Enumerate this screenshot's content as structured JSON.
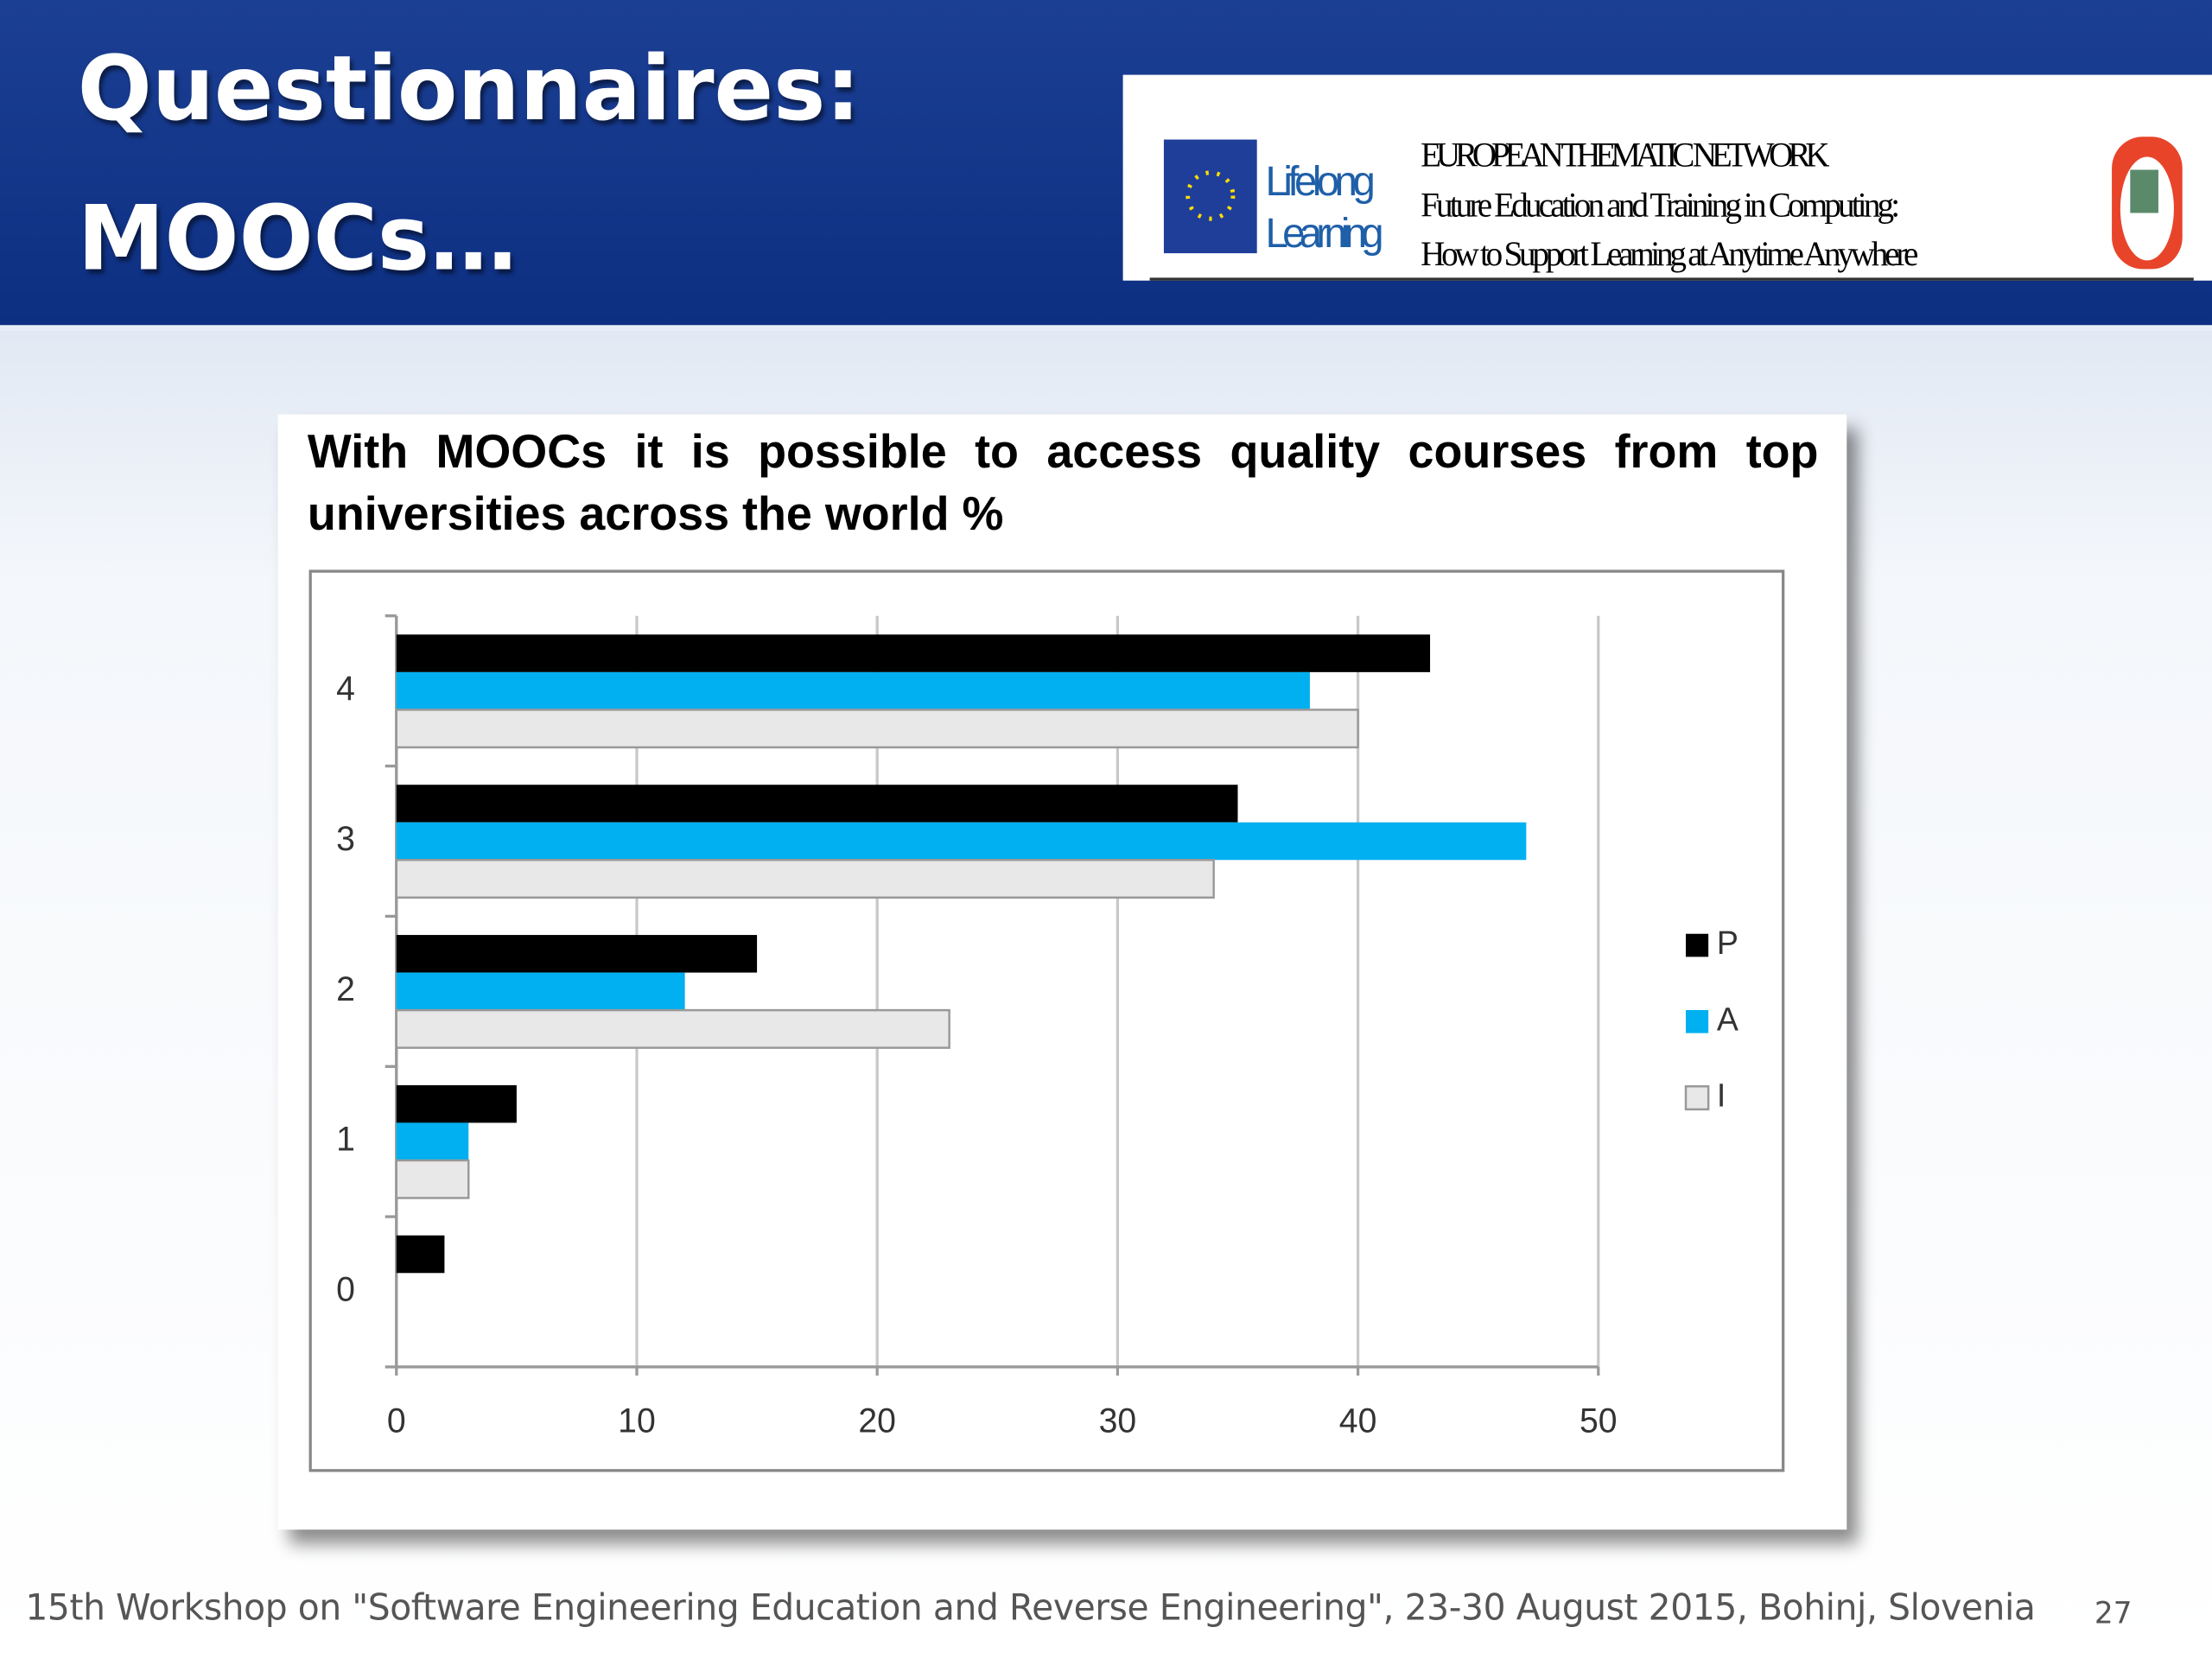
{
  "slide": {
    "title": "Questionnaires: MOOCs…",
    "logo": {
      "program_line1": "Lifelong",
      "program_line2": "Learning",
      "network": "EUROPEAN THEMATIC NETWORK",
      "project_line1": "Future Education and Training in Computing:",
      "project_line2": "How to Support Learning at Anytime Anywhere"
    },
    "footer": "15th Workshop on \"Software Engineering Education and Reverse Engineering\", 23-30 August 2015, Bohinj, Slovenia",
    "page_number": "27"
  },
  "chart_data": {
    "type": "hbar",
    "title": "With MOOCs it is possible to access quality courses from top universities across the world %",
    "categories": [
      "0",
      "1",
      "2",
      "3",
      "4"
    ],
    "series": [
      {
        "name": "P",
        "color": "#000000",
        "values": [
          2,
          5,
          15,
          35,
          43
        ]
      },
      {
        "name": "A",
        "color": "#00b0f0",
        "values": [
          0,
          3,
          12,
          47,
          38
        ]
      },
      {
        "name": "I",
        "color": "#e8e8e8",
        "values": [
          0,
          3,
          23,
          34,
          40
        ]
      }
    ],
    "xlim": [
      0,
      50
    ],
    "xticks": [
      0,
      10,
      20,
      30,
      40,
      50
    ],
    "grid": true,
    "legend": "right"
  }
}
